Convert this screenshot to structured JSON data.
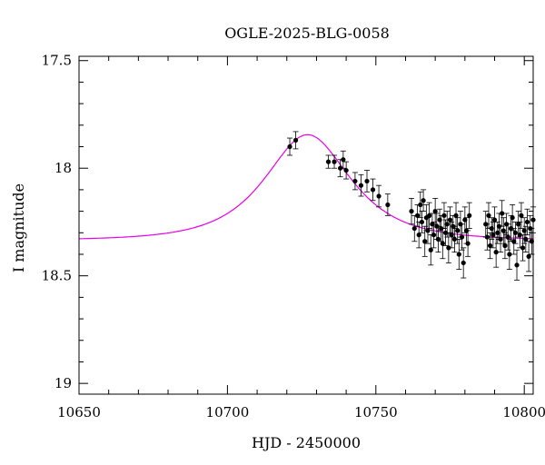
{
  "chart_data": {
    "type": "scatter",
    "title": "OGLE-2025-BLG-0058",
    "xlabel": "HJD - 2450000",
    "ylabel": "I magnitude",
    "xlim": [
      10650,
      10803
    ],
    "ylim": [
      19.05,
      17.48
    ],
    "y_inverted": true,
    "grid": false,
    "legend": "none",
    "x_ticks": [
      10650,
      10700,
      10750,
      10800
    ],
    "y_ticks": [
      17.5,
      18,
      18.5,
      19
    ],
    "colors": {
      "points": "#000000",
      "model": "#e600e6"
    },
    "series": [
      {
        "type": "scatter_errorbar",
        "points": [
          [
            10721,
            17.9,
            0.04
          ],
          [
            10723,
            17.87,
            0.04
          ],
          [
            10734,
            17.97,
            0.03
          ],
          [
            10736,
            17.97,
            0.03
          ],
          [
            10738,
            18.0,
            0.04
          ],
          [
            10739,
            17.96,
            0.04
          ],
          [
            10740,
            18.01,
            0.04
          ],
          [
            10743,
            18.06,
            0.04
          ],
          [
            10745,
            18.08,
            0.05
          ],
          [
            10747,
            18.06,
            0.05
          ],
          [
            10749,
            18.1,
            0.05
          ],
          [
            10751,
            18.13,
            0.05
          ],
          [
            10754,
            18.17,
            0.05
          ],
          [
            10762,
            18.2,
            0.06
          ],
          [
            10763,
            18.28,
            0.06
          ],
          [
            10764,
            18.22,
            0.05
          ],
          [
            10764.5,
            18.31,
            0.06
          ],
          [
            10765,
            18.17,
            0.06
          ],
          [
            10765.5,
            18.25,
            0.05
          ],
          [
            10766,
            18.15,
            0.05
          ],
          [
            10766.5,
            18.34,
            0.07
          ],
          [
            10767,
            18.23,
            0.06
          ],
          [
            10767.5,
            18.29,
            0.06
          ],
          [
            10768,
            18.22,
            0.06
          ],
          [
            10768.5,
            18.38,
            0.07
          ],
          [
            10769,
            18.26,
            0.05
          ],
          [
            10769.5,
            18.31,
            0.06
          ],
          [
            10770,
            18.2,
            0.06
          ],
          [
            10770.5,
            18.27,
            0.06
          ],
          [
            10771,
            18.33,
            0.06
          ],
          [
            10771.5,
            18.24,
            0.05
          ],
          [
            10772,
            18.28,
            0.06
          ],
          [
            10772.5,
            18.35,
            0.07
          ],
          [
            10773,
            18.22,
            0.06
          ],
          [
            10773.5,
            18.3,
            0.06
          ],
          [
            10774,
            18.26,
            0.06
          ],
          [
            10774.5,
            18.37,
            0.07
          ],
          [
            10775,
            18.24,
            0.06
          ],
          [
            10775.5,
            18.31,
            0.06
          ],
          [
            10776,
            18.27,
            0.05
          ],
          [
            10776.5,
            18.33,
            0.06
          ],
          [
            10777,
            18.22,
            0.06
          ],
          [
            10777.5,
            18.29,
            0.06
          ],
          [
            10778,
            18.4,
            0.07
          ],
          [
            10778.5,
            18.26,
            0.06
          ],
          [
            10779,
            18.32,
            0.06
          ],
          [
            10779.5,
            18.44,
            0.07
          ],
          [
            10780,
            18.24,
            0.06
          ],
          [
            10780.5,
            18.29,
            0.06
          ],
          [
            10781,
            18.35,
            0.06
          ],
          [
            10781.5,
            18.22,
            0.06
          ],
          [
            10787,
            18.26,
            0.06
          ],
          [
            10787.5,
            18.32,
            0.06
          ],
          [
            10788,
            18.22,
            0.06
          ],
          [
            10788.5,
            18.36,
            0.06
          ],
          [
            10789,
            18.28,
            0.05
          ],
          [
            10789.5,
            18.31,
            0.06
          ],
          [
            10790,
            18.24,
            0.06
          ],
          [
            10790.5,
            18.39,
            0.07
          ],
          [
            10791,
            18.3,
            0.05
          ],
          [
            10791.5,
            18.27,
            0.06
          ],
          [
            10792,
            18.33,
            0.06
          ],
          [
            10792.5,
            18.21,
            0.06
          ],
          [
            10793,
            18.29,
            0.06
          ],
          [
            10793.5,
            18.36,
            0.06
          ],
          [
            10794,
            18.26,
            0.05
          ],
          [
            10794.5,
            18.32,
            0.06
          ],
          [
            10795,
            18.4,
            0.07
          ],
          [
            10795.5,
            18.28,
            0.06
          ],
          [
            10796,
            18.23,
            0.06
          ],
          [
            10796.5,
            18.34,
            0.06
          ],
          [
            10797,
            18.3,
            0.05
          ],
          [
            10797.5,
            18.45,
            0.07
          ],
          [
            10798,
            18.26,
            0.06
          ],
          [
            10798.5,
            18.31,
            0.06
          ],
          [
            10799,
            18.22,
            0.06
          ],
          [
            10799.5,
            18.37,
            0.06
          ],
          [
            10800,
            18.29,
            0.06
          ],
          [
            10800.5,
            18.33,
            0.06
          ],
          [
            10801,
            18.25,
            0.06
          ],
          [
            10801.5,
            18.41,
            0.07
          ],
          [
            10802,
            18.28,
            0.06
          ],
          [
            10802.5,
            18.34,
            0.06
          ],
          [
            10803,
            18.24,
            0.06
          ]
        ]
      },
      {
        "type": "line",
        "t0": 10727,
        "u0": 0.77,
        "tE": 20.0,
        "baseline": 18.335
      }
    ]
  }
}
